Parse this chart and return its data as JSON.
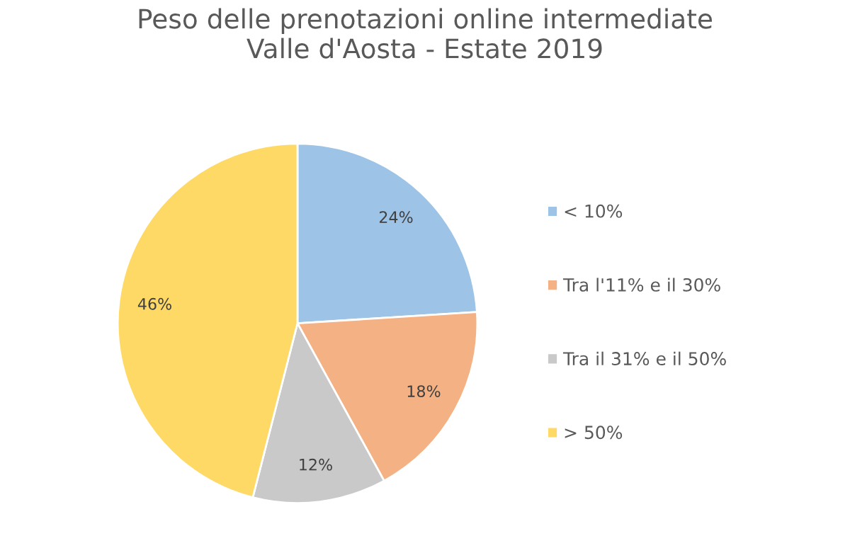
{
  "chart_data": {
    "type": "pie",
    "title": "Peso delle prenotazioni online intermediate\nValle d'Aosta - Estate 2019",
    "categories": [
      "< 10%",
      "Tra l'11% e il 30%",
      "Tra il 31% e il 50%",
      "> 50%"
    ],
    "values": [
      24,
      18,
      12,
      46
    ],
    "colors": [
      "#9dc3e6",
      "#f4b183",
      "#c9c9c9",
      "#ffd966"
    ],
    "value_labels": [
      "24%",
      "18%",
      "12%",
      "46%"
    ],
    "legend": "right"
  }
}
